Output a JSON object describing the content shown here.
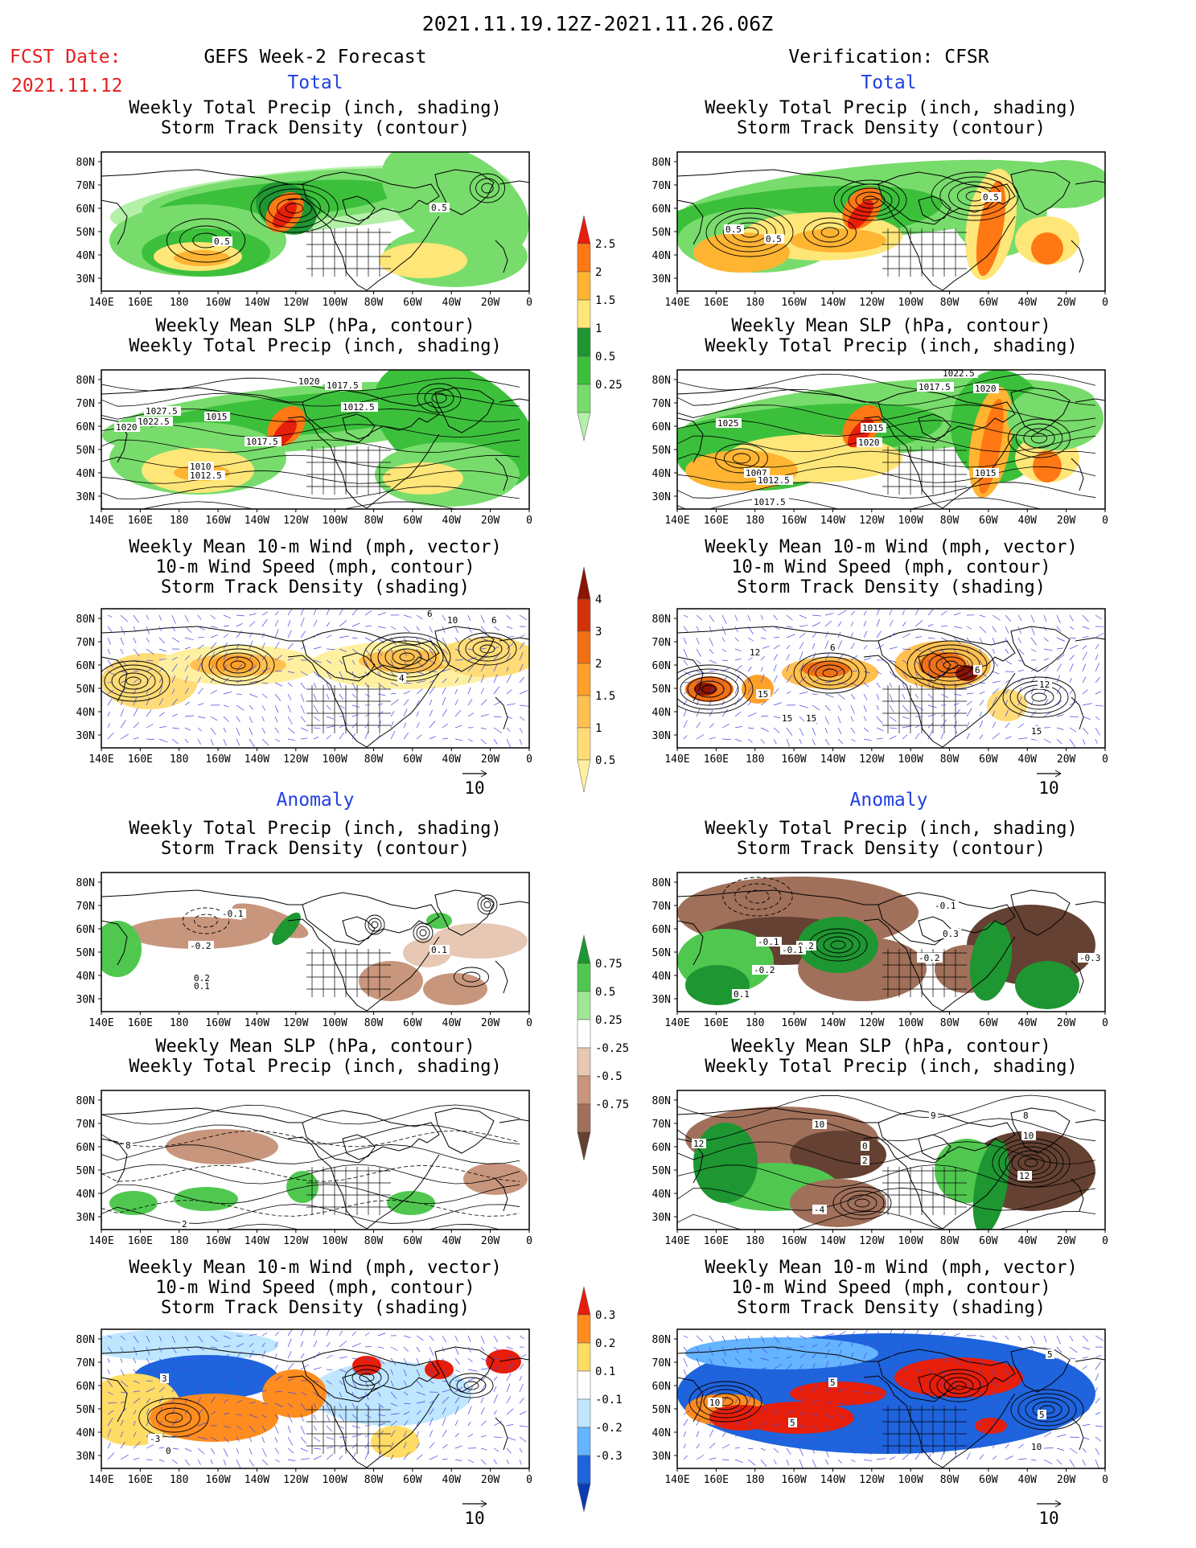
{
  "header": {
    "period": "2021.11.19.12Z-2021.11.26.06Z",
    "fcst_label": "FCST Date:",
    "fcst_date": "2021.11.12",
    "left_title": "GEFS Week-2 Forecast",
    "right_title": "Verification: CFSR"
  },
  "sections": {
    "total": "Total",
    "anomaly": "Anomaly"
  },
  "panel_titles": {
    "precip_storm": [
      "Weekly Total Precip (inch, shading)",
      "Storm Track Density (contour)"
    ],
    "slp_precip": [
      "Weekly Mean SLP (hPa, contour)",
      "Weekly Total Precip (inch, shading)"
    ],
    "wind": [
      "Weekly Mean 10-m Wind (mph, vector)",
      "10-m Wind Speed (mph, contour)",
      "Storm Track Density (shading)"
    ]
  },
  "axes": {
    "lat_labels": [
      "80N",
      "70N",
      "60N",
      "50N",
      "40N",
      "30N"
    ],
    "lon_labels": [
      "140E",
      "160E",
      "180",
      "160W",
      "140W",
      "120W",
      "100W",
      "80W",
      "60W",
      "40W",
      "20W",
      "0"
    ]
  },
  "vector_ref": "10",
  "colorbars": {
    "total_precip": {
      "labels": [
        "0.25",
        "0.5",
        "1",
        "1.5",
        "2",
        "2.5"
      ],
      "colors": [
        "#b4f0a8",
        "#78dc6c",
        "#3cc03c",
        "#1e9632",
        "#ffe678",
        "#ffb432",
        "#ff7814",
        "#e61e0a"
      ]
    },
    "total_storm": {
      "labels": [
        "0.5",
        "1",
        "1.5",
        "2",
        "3",
        "4"
      ],
      "colors": [
        "#fff0a0",
        "#ffdc78",
        "#ffc050",
        "#ffa028",
        "#f07014",
        "#d2320a",
        "#8c1400"
      ]
    },
    "anom_precip": {
      "labels": [
        "0.75",
        "0.5",
        "0.25",
        "-0.25",
        "-0.5",
        "-0.75"
      ],
      "colors": [
        "#1e9632",
        "#50c850",
        "#a0e696",
        "#ffffff",
        "#e6c8b4",
        "#c8967d",
        "#a0705a",
        "#644132"
      ]
    },
    "anom_storm": {
      "labels": [
        "0.3",
        "0.2",
        "0.1",
        "-0.1",
        "-0.2",
        "-0.3"
      ],
      "colors": [
        "#e61e0a",
        "#ff8c1e",
        "#ffdc64",
        "#ffffff",
        "#bee6ff",
        "#64b4ff",
        "#1e64dc",
        "#0a3cb4"
      ]
    }
  },
  "contour_labels": {
    "p1": [
      "0.5",
      "0.5"
    ],
    "p2": [
      "1020",
      "1017.5",
      "1012.5",
      "1027.5",
      "1022.5",
      "1020",
      "1015",
      "1017.5",
      "1010",
      "1012.5"
    ],
    "p3": [
      "6",
      "10",
      "6",
      "4"
    ],
    "p7": [
      "0.5",
      "0.5",
      "0.5"
    ],
    "p8": [
      "1022.5",
      "1020",
      "1017.5",
      "1025",
      "1015",
      "1020",
      "1007",
      "1012.5",
      "1017.5",
      "1015"
    ],
    "p9": [
      "12",
      "6",
      "15",
      "15",
      "15",
      "12",
      "15",
      "6"
    ],
    "p4": [
      "-0.1",
      "-0.2",
      "0.2",
      "0.1",
      "0.1"
    ],
    "p5": [
      "8",
      "2"
    ],
    "p6": [
      "3",
      "-3",
      "0"
    ],
    "p10": [
      "-0.1",
      "-0.1",
      "-0.2",
      "0.2",
      "0.1",
      "0.3",
      "-0.3",
      "-0.2",
      "-0.1"
    ],
    "p11": [
      "12",
      "10",
      "0",
      "2",
      "8",
      "9",
      "10",
      "12",
      "-4"
    ],
    "p12": [
      "10",
      "5",
      "5",
      "5",
      "5",
      "10"
    ]
  }
}
